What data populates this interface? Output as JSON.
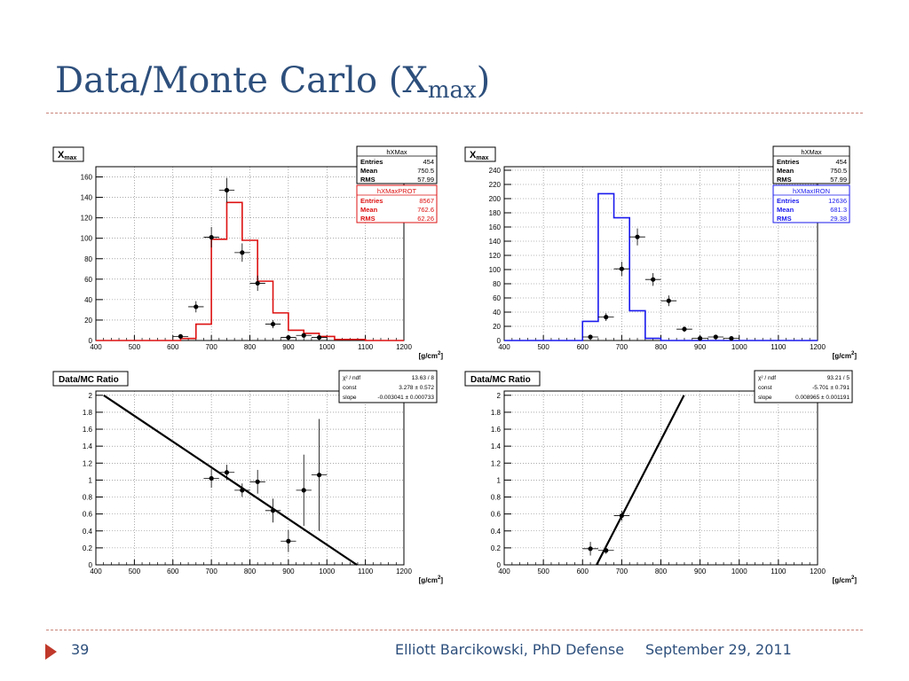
{
  "slide": {
    "title_main": "Data/Monte Carlo (X",
    "title_sub": "max",
    "title_end": ")",
    "footer": {
      "number": "39",
      "presenter": "Elliott Barcikowski, PhD Defense",
      "date": "September 29, 2011"
    }
  },
  "chart_data": [
    {
      "type": "bar",
      "panel": "top-left",
      "title_main": "X",
      "title_sub": "max",
      "xlabel": "[g/cm",
      "xlabel_sup": "2",
      "xlabel_end": "]",
      "xlim": [
        400,
        1200
      ],
      "ylim": [
        0,
        170
      ],
      "x_ticks": [
        400,
        500,
        600,
        700,
        800,
        900,
        1000,
        1100,
        1200
      ],
      "y_ticks": [
        0,
        20,
        40,
        60,
        80,
        100,
        120,
        140,
        160
      ],
      "grid": true,
      "stats_boxes": [
        {
          "name": "hXMax",
          "color": "#000000",
          "rows": [
            [
              "Entries",
              "454"
            ],
            [
              "Mean",
              "750.5"
            ],
            [
              "RMS",
              "57.99"
            ]
          ]
        },
        {
          "name": "hXMaxPROT",
          "color": "#dd1111",
          "rows": [
            [
              "Entries",
              "8567"
            ],
            [
              "Mean",
              "762.6"
            ],
            [
              "RMS",
              "62.26"
            ]
          ]
        }
      ],
      "histogram": {
        "color": "#dd1111",
        "bin_edges": [
          400,
          620,
          660,
          700,
          740,
          780,
          820,
          860,
          900,
          940,
          980,
          1020,
          1060,
          1100,
          1200
        ],
        "values": [
          0,
          2,
          16,
          99,
          135,
          98,
          58,
          27,
          10,
          7,
          4,
          1,
          1,
          0
        ]
      },
      "points": [
        {
          "x": 620,
          "y": 4,
          "err": 2
        },
        {
          "x": 660,
          "y": 33,
          "err": 5.5
        },
        {
          "x": 700,
          "y": 101,
          "err": 10
        },
        {
          "x": 740,
          "y": 147,
          "err": 12
        },
        {
          "x": 780,
          "y": 86,
          "err": 9
        },
        {
          "x": 820,
          "y": 56,
          "err": 7.5
        },
        {
          "x": 860,
          "y": 16,
          "err": 4
        },
        {
          "x": 900,
          "y": 3,
          "err": 1.7
        },
        {
          "x": 940,
          "y": 5,
          "err": 2.2
        },
        {
          "x": 980,
          "y": 3,
          "err": 1.7
        }
      ]
    },
    {
      "type": "bar",
      "panel": "top-right",
      "title_main": "X",
      "title_sub": "max",
      "xlabel": "[g/cm",
      "xlabel_sup": "2",
      "xlabel_end": "]",
      "xlim": [
        400,
        1200
      ],
      "ylim": [
        0,
        245
      ],
      "x_ticks": [
        400,
        500,
        600,
        700,
        800,
        900,
        1000,
        1100,
        1200
      ],
      "y_ticks": [
        0,
        20,
        40,
        60,
        80,
        100,
        120,
        140,
        160,
        180,
        200,
        220,
        240
      ],
      "grid": true,
      "stats_boxes": [
        {
          "name": "hXMax",
          "color": "#000000",
          "rows": [
            [
              "Entries",
              "454"
            ],
            [
              "Mean",
              "750.5"
            ],
            [
              "RMS",
              "57.99"
            ]
          ]
        },
        {
          "name": "hXMaxIRON",
          "color": "#1a1aee",
          "rows": [
            [
              "Entries",
              "12636"
            ],
            [
              "Mean",
              "681.3"
            ],
            [
              "RMS",
              "29.38"
            ]
          ]
        }
      ],
      "histogram": {
        "color": "#1a1aee",
        "bin_edges": [
          400,
          600,
          640,
          680,
          720,
          760,
          800,
          1200
        ],
        "values": [
          0,
          27,
          207,
          173,
          42,
          3,
          0
        ]
      },
      "points": [
        {
          "x": 620,
          "y": 5,
          "err": 2
        },
        {
          "x": 660,
          "y": 33,
          "err": 5.5
        },
        {
          "x": 700,
          "y": 101,
          "err": 10
        },
        {
          "x": 740,
          "y": 146,
          "err": 12
        },
        {
          "x": 780,
          "y": 86,
          "err": 9
        },
        {
          "x": 820,
          "y": 56,
          "err": 7.5
        },
        {
          "x": 860,
          "y": 16,
          "err": 4
        },
        {
          "x": 900,
          "y": 3,
          "err": 1.7
        },
        {
          "x": 940,
          "y": 5,
          "err": 2.2
        },
        {
          "x": 980,
          "y": 3,
          "err": 1.7
        }
      ]
    },
    {
      "type": "scatter",
      "panel": "bottom-left",
      "title": "Data/MC Ratio",
      "xlabel": "[g/cm",
      "xlabel_sup": "2",
      "xlabel_end": "]",
      "xlim": [
        400,
        1200
      ],
      "ylim": [
        0,
        2.05
      ],
      "x_ticks": [
        400,
        500,
        600,
        700,
        800,
        900,
        1000,
        1100,
        1200
      ],
      "y_ticks": [
        0,
        0.2,
        0.4,
        0.6,
        0.8,
        1,
        1.2,
        1.4,
        1.6,
        1.8,
        2
      ],
      "grid": true,
      "fit_box": {
        "rows": [
          [
            "χ² / ndf",
            "13.63 / 8"
          ],
          [
            "const",
            "3.278 ± 0.572"
          ],
          [
            "slope",
            "-0.003041 ± 0.000733"
          ]
        ]
      },
      "fit": {
        "const": 3.278,
        "slope": -0.003041
      },
      "points": [
        {
          "x": 700,
          "y": 1.02,
          "err": 0.11
        },
        {
          "x": 740,
          "y": 1.09,
          "err": 0.09
        },
        {
          "x": 780,
          "y": 0.88,
          "err": 0.08
        },
        {
          "x": 820,
          "y": 0.98,
          "err": 0.14
        },
        {
          "x": 860,
          "y": 0.64,
          "err": 0.14
        },
        {
          "x": 900,
          "y": 0.28,
          "err": 0.13
        },
        {
          "x": 940,
          "y": 0.88,
          "err": 0.42
        },
        {
          "x": 980,
          "y": 1.06,
          "err": 0.66
        }
      ]
    },
    {
      "type": "scatter",
      "panel": "bottom-right",
      "title": "Data/MC Ratio",
      "xlabel": "[g/cm",
      "xlabel_sup": "2",
      "xlabel_end": "]",
      "xlim": [
        400,
        1200
      ],
      "ylim": [
        0,
        2.05
      ],
      "x_ticks": [
        400,
        500,
        600,
        700,
        800,
        900,
        1000,
        1100,
        1200
      ],
      "y_ticks": [
        0,
        0.2,
        0.4,
        0.6,
        0.8,
        1,
        1.2,
        1.4,
        1.6,
        1.8,
        2
      ],
      "grid": true,
      "fit_box": {
        "rows": [
          [
            "χ² / ndf",
            "93.21 / 5"
          ],
          [
            "const",
            "-5.701 ± 0.791"
          ],
          [
            "slope",
            "0.008965 ± 0.001191"
          ]
        ]
      },
      "fit": {
        "const": -5.701,
        "slope": 0.008965
      },
      "points": [
        {
          "x": 620,
          "y": 0.19,
          "err": 0.08
        },
        {
          "x": 660,
          "y": 0.17,
          "err": 0.04
        },
        {
          "x": 700,
          "y": 0.58,
          "err": 0.06
        }
      ]
    }
  ]
}
